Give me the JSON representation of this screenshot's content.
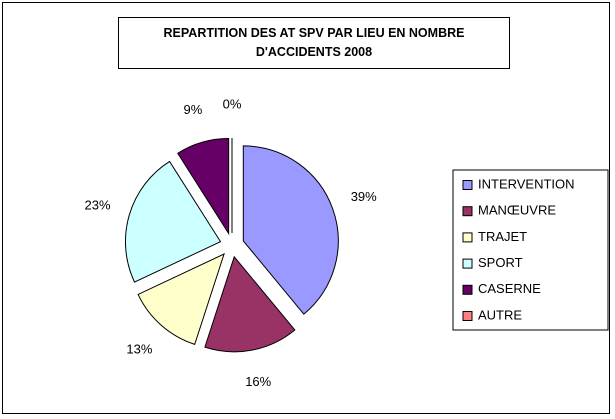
{
  "chart_data": {
    "type": "pie",
    "title": "REPARTITION DES AT SPV PAR LIEU EN NOMBRE D'ACCIDENTS 2008",
    "categories": [
      "INTERVENTION",
      "MANŒUVRE",
      "TRAJET",
      "SPORT",
      "CASERNE",
      "AUTRE"
    ],
    "values": [
      39,
      16,
      13,
      23,
      9,
      0
    ],
    "value_labels": [
      "39%",
      "16%",
      "13%",
      "23%",
      "9%",
      "0%"
    ],
    "colors": [
      "#9999ff",
      "#993366",
      "#ffffcc",
      "#ccffff",
      "#660066",
      "#ff8080"
    ],
    "legend": "right"
  }
}
